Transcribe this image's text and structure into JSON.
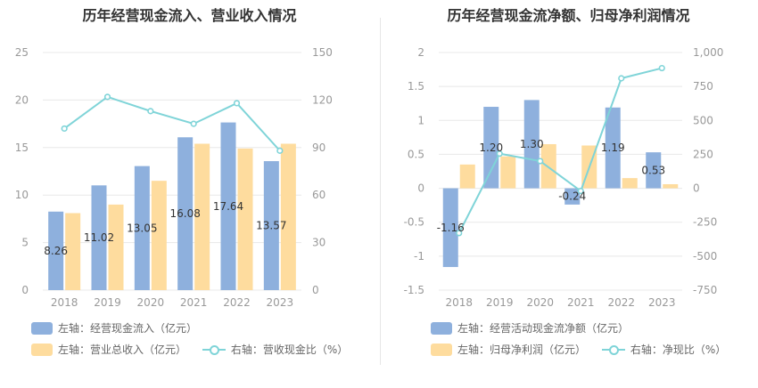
{
  "colors": {
    "bar1": "#8eb0dd",
    "bar2": "#fedc9e",
    "line": "#7fd4d8",
    "grid": "#e8e8e8"
  },
  "chart_data": [
    {
      "type": "bar",
      "title": "历年经营现金流入、营业收入情况",
      "categories": [
        "2018",
        "2019",
        "2020",
        "2021",
        "2022",
        "2023"
      ],
      "yleft": {
        "min": 0,
        "max": 25,
        "ticks": [
          "0",
          "5",
          "10",
          "15",
          "20",
          "25"
        ]
      },
      "yright": {
        "min": 0,
        "max": 150,
        "ticks": [
          "0",
          "30",
          "60",
          "90",
          "120",
          "150"
        ]
      },
      "series": [
        {
          "name": "左轴：经营现金流入（亿元）",
          "axis": "left",
          "kind": "bar",
          "values": [
            8.26,
            11.02,
            13.05,
            16.08,
            17.64,
            13.57
          ],
          "labels": [
            "8.26",
            "11.02",
            "13.05",
            "16.08",
            "17.64",
            "13.57"
          ]
        },
        {
          "name": "左轴：营业总收入（亿元）",
          "axis": "left",
          "kind": "bar",
          "values": [
            8.1,
            9.0,
            11.5,
            15.4,
            14.9,
            15.4
          ]
        },
        {
          "name": "右轴：营收现金比（%）",
          "axis": "right",
          "kind": "line",
          "values": [
            102,
            122,
            113,
            105,
            118,
            88
          ]
        }
      ]
    },
    {
      "type": "bar",
      "title": "历年经营现金流净额、归母净利润情况",
      "categories": [
        "2018",
        "2019",
        "2020",
        "2021",
        "2022",
        "2023"
      ],
      "yleft": {
        "min": -1.5,
        "max": 2,
        "ticks": [
          "-1.5",
          "-1",
          "-0.5",
          "0",
          "0.5",
          "1",
          "1.5",
          "2"
        ]
      },
      "yright": {
        "min": -750,
        "max": 1000,
        "ticks": [
          "-750",
          "-500",
          "-250",
          "0",
          "250",
          "500",
          "750",
          "1,000"
        ]
      },
      "series": [
        {
          "name": "左轴：经营活动现金流净额（亿元）",
          "axis": "left",
          "kind": "bar",
          "values": [
            -1.16,
            1.2,
            1.3,
            -0.24,
            1.19,
            0.53
          ],
          "labels": [
            "-1.16",
            "1.20",
            "1.30",
            "-0.24",
            "1.19",
            "0.53"
          ]
        },
        {
          "name": "左轴：归母净利润（亿元）",
          "axis": "left",
          "kind": "bar",
          "values": [
            0.35,
            0.47,
            0.65,
            0.63,
            0.15,
            0.06
          ]
        },
        {
          "name": "右轴：净现比（%）",
          "axis": "right",
          "kind": "line",
          "values": [
            -330,
            255,
            200,
            -20,
            810,
            885
          ]
        }
      ]
    }
  ]
}
